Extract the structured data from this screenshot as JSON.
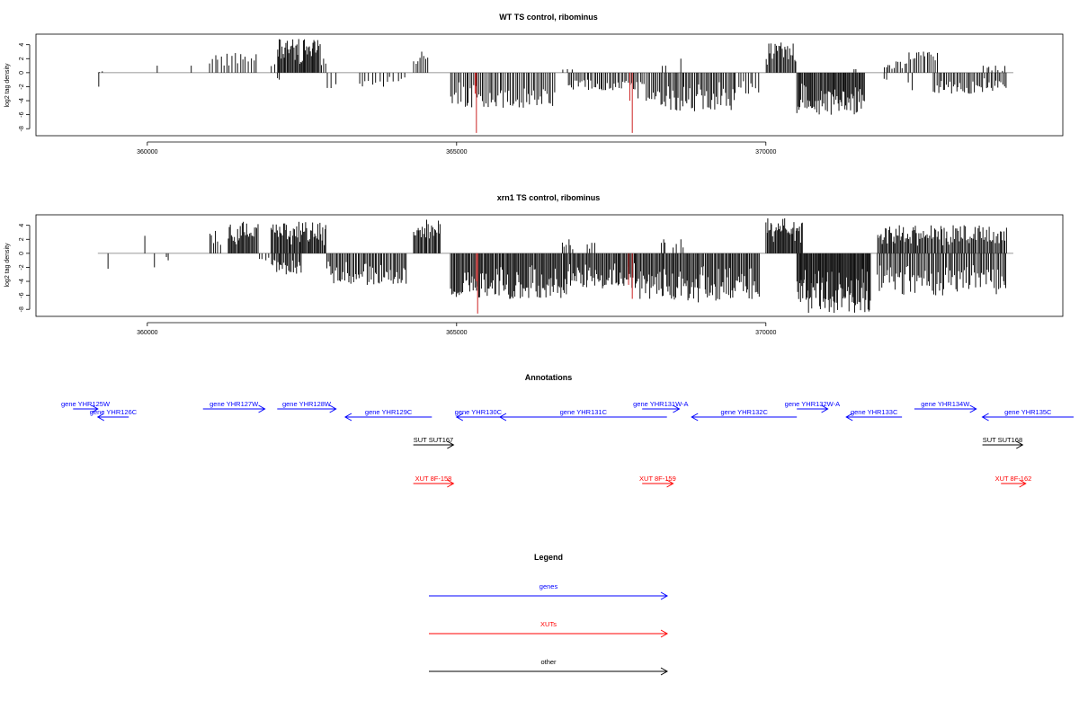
{
  "chart_data": [
    {
      "type": "bar",
      "title": "WT TS control, ribominus",
      "ylabel": "log2 tag density",
      "xlabel": "",
      "xlim": [
        358200,
        374800
      ],
      "ylim": [
        -9,
        5.5
      ],
      "xticks": [
        360000,
        365000,
        370000
      ],
      "yticks": [
        4,
        2,
        0,
        -2,
        -4,
        -6,
        -8
      ],
      "grid": false,
      "baseline_segment": [
        359200,
        374000
      ],
      "positive": [
        {
          "from": 359200,
          "to": 359300,
          "max": 0.2,
          "n": 2
        },
        {
          "from": 360150,
          "to": 360170,
          "max": 1.0,
          "n": 1
        },
        {
          "from": 360700,
          "to": 360720,
          "max": 1.0,
          "n": 1
        },
        {
          "from": 361000,
          "to": 361800,
          "max": 2.8,
          "n": 18
        },
        {
          "from": 362000,
          "to": 362150,
          "max": 1.2,
          "n": 3
        },
        {
          "from": 362100,
          "to": 362800,
          "max": 4.8,
          "n": 45
        },
        {
          "from": 362800,
          "to": 362900,
          "max": 2.0,
          "n": 3
        },
        {
          "from": 364300,
          "to": 364550,
          "max": 3.0,
          "n": 8
        },
        {
          "from": 366700,
          "to": 366900,
          "max": 0.5,
          "n": 3
        },
        {
          "from": 368300,
          "to": 368400,
          "max": 1.0,
          "n": 2
        },
        {
          "from": 368600,
          "to": 368650,
          "max": 2.0,
          "n": 1
        },
        {
          "from": 370000,
          "to": 370500,
          "max": 4.3,
          "n": 25
        },
        {
          "from": 371400,
          "to": 371500,
          "max": 0.5,
          "n": 2
        },
        {
          "from": 371900,
          "to": 372300,
          "max": 1.6,
          "n": 12
        },
        {
          "from": 372300,
          "to": 372800,
          "max": 3.0,
          "n": 15
        },
        {
          "from": 373500,
          "to": 373900,
          "max": 1.0,
          "n": 8
        }
      ],
      "negative": [
        {
          "from": 359200,
          "to": 359230,
          "min": -2.0,
          "n": 1
        },
        {
          "from": 362100,
          "to": 362150,
          "min": -1.0,
          "n": 2
        },
        {
          "from": 362900,
          "to": 363100,
          "min": -2.2,
          "n": 3
        },
        {
          "from": 363400,
          "to": 364200,
          "min": -2.0,
          "n": 14
        },
        {
          "from": 364900,
          "to": 366600,
          "min": -5.0,
          "n": 60
        },
        {
          "from": 366800,
          "to": 367900,
          "min": -2.5,
          "n": 40
        },
        {
          "from": 367900,
          "to": 368200,
          "min": -4.0,
          "n": 10
        },
        {
          "from": 368200,
          "to": 369500,
          "min": -5.5,
          "n": 55
        },
        {
          "from": 369500,
          "to": 369900,
          "min": -3.0,
          "n": 10
        },
        {
          "from": 370500,
          "to": 371600,
          "min": -6.0,
          "n": 70
        },
        {
          "from": 371900,
          "to": 372000,
          "min": -1.0,
          "n": 2
        },
        {
          "from": 372300,
          "to": 372400,
          "min": -2.5,
          "n": 2
        },
        {
          "from": 372700,
          "to": 373900,
          "min": -3.0,
          "n": 45
        }
      ],
      "highlight": [
        {
          "x": 365320,
          "y": -8.6,
          "color": "#cc2222"
        },
        {
          "x": 367840,
          "y": -8.6,
          "color": "#cc2222"
        },
        {
          "x": 365300,
          "y": -3.0,
          "color": "#cc2222"
        },
        {
          "x": 367800,
          "y": -4.0,
          "color": "#cc2222"
        }
      ]
    },
    {
      "type": "bar",
      "title": "xrn1 TS control, ribominus",
      "ylabel": "log2 tag density",
      "xlabel": "",
      "xlim": [
        358200,
        374800
      ],
      "ylim": [
        -9,
        5.5
      ],
      "xticks": [
        360000,
        365000,
        370000
      ],
      "yticks": [
        4,
        2,
        0,
        -2,
        -4,
        -6,
        -8
      ],
      "grid": false,
      "baseline_segment": [
        359200,
        374000
      ],
      "positive": [
        {
          "from": 359950,
          "to": 359970,
          "max": 2.5,
          "n": 1
        },
        {
          "from": 361000,
          "to": 361200,
          "max": 3.2,
          "n": 6
        },
        {
          "from": 361300,
          "to": 361800,
          "max": 4.5,
          "n": 30
        },
        {
          "from": 362000,
          "to": 362900,
          "max": 4.5,
          "n": 55
        },
        {
          "from": 364300,
          "to": 364750,
          "max": 4.8,
          "n": 25
        },
        {
          "from": 366700,
          "to": 366900,
          "max": 2.0,
          "n": 6
        },
        {
          "from": 367100,
          "to": 367250,
          "max": 1.5,
          "n": 4
        },
        {
          "from": 368300,
          "to": 368400,
          "max": 2.0,
          "n": 3
        },
        {
          "from": 368500,
          "to": 368700,
          "max": 2.0,
          "n": 4
        },
        {
          "from": 370000,
          "to": 370600,
          "max": 5.0,
          "n": 40
        },
        {
          "from": 371800,
          "to": 372500,
          "max": 4.0,
          "n": 40
        },
        {
          "from": 372500,
          "to": 373900,
          "max": 4.0,
          "n": 70
        }
      ],
      "negative": [
        {
          "from": 359350,
          "to": 359380,
          "min": -2.2,
          "n": 1
        },
        {
          "from": 360100,
          "to": 360130,
          "min": -2.0,
          "n": 1
        },
        {
          "from": 360300,
          "to": 360350,
          "min": -1.0,
          "n": 2
        },
        {
          "from": 361800,
          "to": 362000,
          "min": -1.0,
          "n": 4
        },
        {
          "from": 362000,
          "to": 362500,
          "min": -3.0,
          "n": 25
        },
        {
          "from": 362900,
          "to": 364200,
          "min": -4.5,
          "n": 60
        },
        {
          "from": 364900,
          "to": 366800,
          "min": -6.5,
          "n": 110
        },
        {
          "from": 366800,
          "to": 367900,
          "min": -5.0,
          "n": 60
        },
        {
          "from": 367900,
          "to": 369900,
          "min": -7.0,
          "n": 110
        },
        {
          "from": 370500,
          "to": 371700,
          "min": -8.5,
          "n": 90
        },
        {
          "from": 371800,
          "to": 373900,
          "min": -6.0,
          "n": 90
        }
      ],
      "highlight": [
        {
          "x": 365340,
          "y": -8.6,
          "color": "#cc2222"
        },
        {
          "x": 367840,
          "y": -6.5,
          "color": "#cc2222"
        },
        {
          "x": 365320,
          "y": -4.0,
          "color": "#cc2222"
        },
        {
          "x": 367780,
          "y": -4.5,
          "color": "#cc2222"
        }
      ]
    },
    {
      "type": "annotation-track",
      "title": "Annotations",
      "xlim": [
        358200,
        374800
      ],
      "features": [
        {
          "label": "gene YHR125W",
          "from": 358800,
          "to": 359200,
          "strand": "+",
          "row": 0,
          "color": "#0000ff"
        },
        {
          "label": "gene YHR126C",
          "from": 359200,
          "to": 359700,
          "strand": "-",
          "row": 1,
          "color": "#0000ff"
        },
        {
          "label": "gene YHR127W",
          "from": 360900,
          "to": 361900,
          "strand": "+",
          "row": 0,
          "color": "#0000ff"
        },
        {
          "label": "gene YHR128W",
          "from": 362100,
          "to": 363050,
          "strand": "+",
          "row": 0,
          "color": "#0000ff"
        },
        {
          "label": "gene YHR129C",
          "from": 363200,
          "to": 364600,
          "strand": "-",
          "row": 1,
          "color": "#0000ff"
        },
        {
          "label": "gene YHR130C",
          "from": 365000,
          "to": 365700,
          "strand": "-",
          "row": 1,
          "color": "#0000ff"
        },
        {
          "label": "gene YHR131C",
          "from": 365700,
          "to": 368400,
          "strand": "-",
          "row": 1,
          "color": "#0000ff"
        },
        {
          "label": "gene YHR131W-A",
          "from": 368000,
          "to": 368600,
          "strand": "+",
          "row": 0,
          "color": "#0000ff"
        },
        {
          "label": "gene YHR132C",
          "from": 368800,
          "to": 370500,
          "strand": "-",
          "row": 1,
          "color": "#0000ff"
        },
        {
          "label": "gene YHR132W-A",
          "from": 370500,
          "to": 371000,
          "strand": "+",
          "row": 0,
          "color": "#0000ff"
        },
        {
          "label": "gene YHR133C",
          "from": 371300,
          "to": 372200,
          "strand": "-",
          "row": 1,
          "color": "#0000ff"
        },
        {
          "label": "gene YHR134W",
          "from": 372400,
          "to": 373400,
          "strand": "+",
          "row": 0,
          "color": "#0000ff"
        },
        {
          "label": "gene YHR135C",
          "from": 373500,
          "to": 375100,
          "strand": "-",
          "row": 1,
          "color": "#0000ff"
        },
        {
          "label": "SUT SUT167",
          "from": 364300,
          "to": 364950,
          "strand": "+",
          "row": 2,
          "color": "#000000"
        },
        {
          "label": "SUT SUT168",
          "from": 373500,
          "to": 374150,
          "strand": "+",
          "row": 2,
          "color": "#000000"
        },
        {
          "label": "XUT 8F-158",
          "from": 364300,
          "to": 364950,
          "strand": "+",
          "row": 3,
          "color": "#ff0000"
        },
        {
          "label": "XUT 8F-159",
          "from": 368000,
          "to": 368500,
          "strand": "+",
          "row": 3,
          "color": "#ff0000"
        },
        {
          "label": "XUT 8F-162",
          "from": 373800,
          "to": 374200,
          "strand": "+",
          "row": 3,
          "color": "#ff0000"
        }
      ]
    }
  ],
  "legend": {
    "title": "Legend",
    "items": [
      {
        "label": "genes",
        "color": "#0000ff"
      },
      {
        "label": "XUTs",
        "color": "#ff0000"
      },
      {
        "label": "other",
        "color": "#000000"
      }
    ]
  }
}
